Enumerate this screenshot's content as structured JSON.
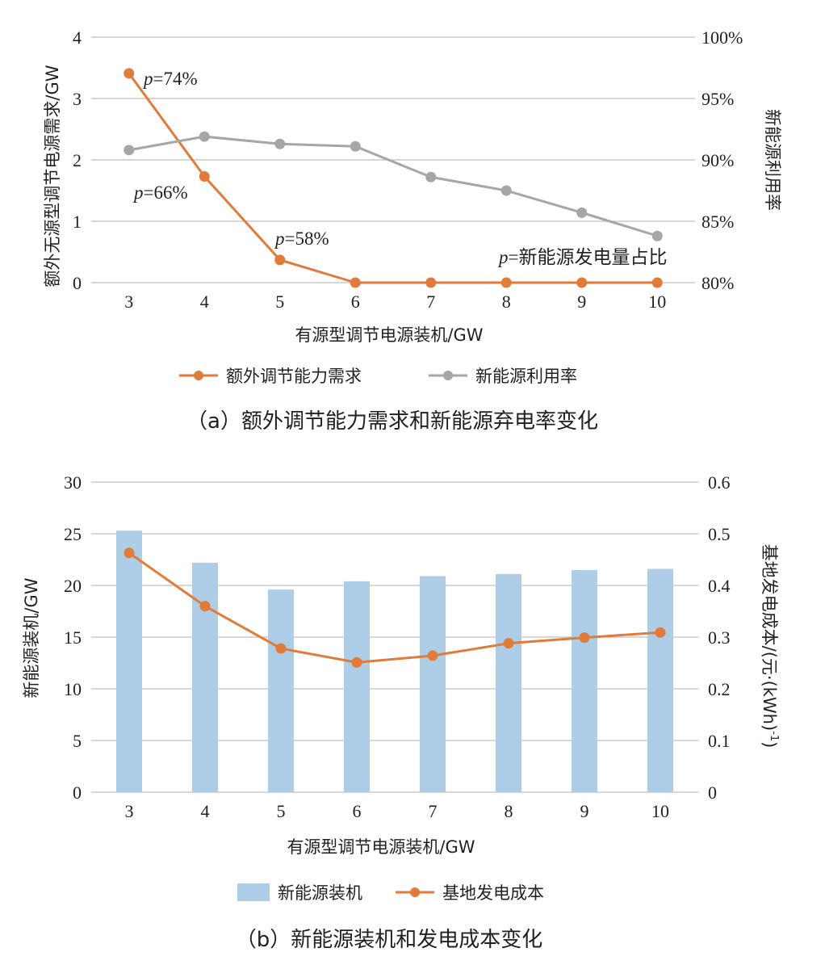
{
  "chart_data": [
    {
      "type": "line",
      "caption": "（a）额外调节能力需求和新能源弃电率变化",
      "xlabel": "有源型调节电源装机/GW",
      "ylabel_left": "额外无源型调节电源需求/GW",
      "ylabel_right": "新能源利用率",
      "categories": [
        "3",
        "4",
        "5",
        "6",
        "7",
        "8",
        "9",
        "10"
      ],
      "ylim_left": [
        0,
        4
      ],
      "ylim_right": [
        0.8,
        1.0
      ],
      "yticks_left": [
        "0",
        "1",
        "2",
        "3",
        "4"
      ],
      "yticks_right": [
        "80%",
        "85%",
        "90%",
        "95%",
        "100%"
      ],
      "grid": true,
      "legend_position": "bottom",
      "series": [
        {
          "name": "额外调节能力需求",
          "axis": "left",
          "color": "#e07b39",
          "values": [
            3.41,
            1.73,
            0.37,
            0,
            0,
            0,
            0,
            0
          ]
        },
        {
          "name": "新能源利用率",
          "axis": "right",
          "color": "#a6a6a6",
          "values": [
            0.908,
            0.919,
            0.913,
            0.911,
            0.886,
            0.875,
            0.857,
            0.838
          ]
        }
      ],
      "annotations": [
        {
          "p": "p",
          "text": "=74%"
        },
        {
          "p": "p",
          "text": "=66%"
        },
        {
          "p": "p",
          "text": "=58%"
        },
        {
          "p": "p",
          "text": "=新能源发电量占比"
        }
      ]
    },
    {
      "type": "bar",
      "caption": "（b）新能源装机和发电成本变化",
      "xlabel": "有源型调节电源装机/GW",
      "ylabel_left": "新能源装机/GW",
      "ylabel_right": "基地发电成本/(元·(kWh)",
      "ylabel_right_sup": "-1",
      "ylabel_right_end": ")",
      "categories": [
        "3",
        "4",
        "5",
        "6",
        "7",
        "8",
        "9",
        "10"
      ],
      "ylim_left": [
        0,
        30
      ],
      "ylim_right": [
        0,
        0.6
      ],
      "yticks_left": [
        "0",
        "5",
        "10",
        "15",
        "20",
        "25",
        "30"
      ],
      "yticks_right": [
        "0",
        "0.1",
        "0.2",
        "0.3",
        "0.4",
        "0.5",
        "0.6"
      ],
      "grid": true,
      "legend_position": "bottom",
      "series": [
        {
          "name": "新能源装机",
          "kind": "bar",
          "axis": "left",
          "color": "#aecde6",
          "values": [
            25.3,
            22.2,
            19.6,
            20.4,
            20.9,
            21.1,
            21.5,
            21.6
          ]
        },
        {
          "name": "基地发电成本",
          "kind": "line",
          "axis": "right",
          "color": "#e07b39",
          "values": [
            0.463,
            0.36,
            0.278,
            0.251,
            0.264,
            0.288,
            0.299,
            0.309
          ]
        }
      ]
    }
  ]
}
